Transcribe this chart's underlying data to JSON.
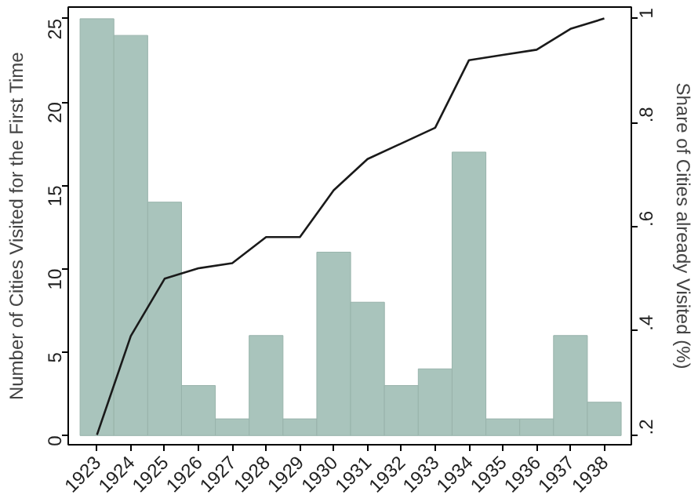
{
  "chart_data": {
    "type": "bar",
    "ylabel": "Number of Cities Visited for the First Time",
    "y2label": "Share of Cities already Visited (%)",
    "x": [
      1923,
      1924,
      1925,
      1926,
      1927,
      1928,
      1929,
      1930,
      1931,
      1932,
      1933,
      1934,
      1935,
      1936,
      1937,
      1938
    ],
    "xlim": [
      1922.15,
      1938.8
    ],
    "xticks": [
      1923,
      1924,
      1925,
      1926,
      1927,
      1928,
      1929,
      1930,
      1931,
      1932,
      1933,
      1934,
      1935,
      1936,
      1937,
      1938
    ],
    "ylim": [
      -0.55,
      25.7
    ],
    "yticks": [
      0,
      5,
      10,
      15,
      20,
      25
    ],
    "y2lim": [
      0.181,
      1.022
    ],
    "y2ticks": [
      {
        "value": 0.2,
        "label": ".2"
      },
      {
        "value": 0.4,
        "label": ".4"
      },
      {
        "value": 0.6,
        "label": ".6"
      },
      {
        "value": 0.8,
        "label": ".8"
      },
      1
    ],
    "grid": false,
    "series": [
      {
        "color": "#a9c4bc",
        "values": [
          25,
          24,
          14,
          3,
          1,
          6,
          1,
          11,
          8,
          3,
          4,
          17,
          1,
          1,
          6,
          2
        ]
      },
      {
        "type": "line",
        "axis": "y2",
        "color": "#1a1a1a",
        "values": [
          0.2,
          0.39,
          0.5,
          0.52,
          0.53,
          0.58,
          0.58,
          0.67,
          0.73,
          0.76,
          0.79,
          0.92,
          0.93,
          0.94,
          0.98,
          1.0
        ]
      }
    ]
  }
}
